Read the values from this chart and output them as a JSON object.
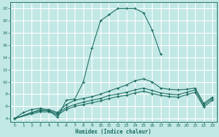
{
  "title": "",
  "xlabel": "Humidex (Indice chaleur)",
  "ylabel": "",
  "bg_color": "#c2e8e5",
  "grid_color": "#ffffff",
  "line_color": "#1a6b60",
  "xlim": [
    -0.5,
    23.5
  ],
  "ylim": [
    3.5,
    23
  ],
  "xticks": [
    0,
    1,
    2,
    3,
    4,
    5,
    6,
    7,
    8,
    9,
    10,
    11,
    12,
    13,
    14,
    15,
    16,
    17,
    18,
    19,
    20,
    21,
    22,
    23
  ],
  "yticks": [
    4,
    6,
    8,
    10,
    12,
    14,
    16,
    18,
    20,
    22
  ],
  "lines": [
    {
      "x": [
        0,
        1,
        2,
        3,
        4,
        5,
        6,
        7,
        8,
        9,
        10,
        11,
        12,
        13,
        14,
        15,
        16,
        17
      ],
      "y": [
        4,
        5,
        5.5,
        5.7,
        5.4,
        4.2,
        7.0,
        7.2,
        10.0,
        15.5,
        20.0,
        21.0,
        22.0,
        22.0,
        22.0,
        21.3,
        18.5,
        14.5
      ]
    },
    {
      "x": [
        0,
        2,
        3,
        4,
        5,
        6,
        7,
        8,
        9,
        10,
        11,
        12,
        13,
        14,
        15,
        16,
        17,
        18,
        19,
        20,
        21,
        22,
        23
      ],
      "y": [
        4,
        5,
        5.5,
        5.5,
        5.0,
        6.3,
        7.0,
        7.3,
        7.6,
        8.0,
        8.5,
        9.0,
        9.5,
        10.2,
        10.5,
        10.0,
        9.0,
        8.8,
        8.7,
        8.8,
        9.0,
        6.5,
        7.5
      ]
    },
    {
      "x": [
        0,
        2,
        3,
        4,
        5,
        6,
        7,
        8,
        9,
        10,
        11,
        12,
        13,
        14,
        15,
        16,
        17,
        18,
        19,
        20,
        21,
        22,
        23
      ],
      "y": [
        4,
        5,
        5.3,
        5.3,
        4.8,
        5.8,
        6.3,
        6.7,
        7.0,
        7.3,
        7.8,
        8.0,
        8.3,
        8.7,
        9.0,
        8.6,
        8.2,
        8.0,
        7.9,
        8.3,
        8.7,
        6.2,
        7.3
      ]
    },
    {
      "x": [
        0,
        2,
        3,
        4,
        5,
        6,
        7,
        8,
        9,
        10,
        11,
        12,
        13,
        14,
        15,
        16,
        17,
        18,
        19,
        20,
        21,
        22,
        23
      ],
      "y": [
        4,
        4.8,
        5.1,
        5.1,
        4.6,
        5.5,
        6.0,
        6.3,
        6.6,
        6.9,
        7.3,
        7.6,
        7.8,
        8.2,
        8.5,
        8.1,
        7.8,
        7.6,
        7.5,
        7.9,
        8.3,
        5.9,
        7.0
      ]
    }
  ]
}
